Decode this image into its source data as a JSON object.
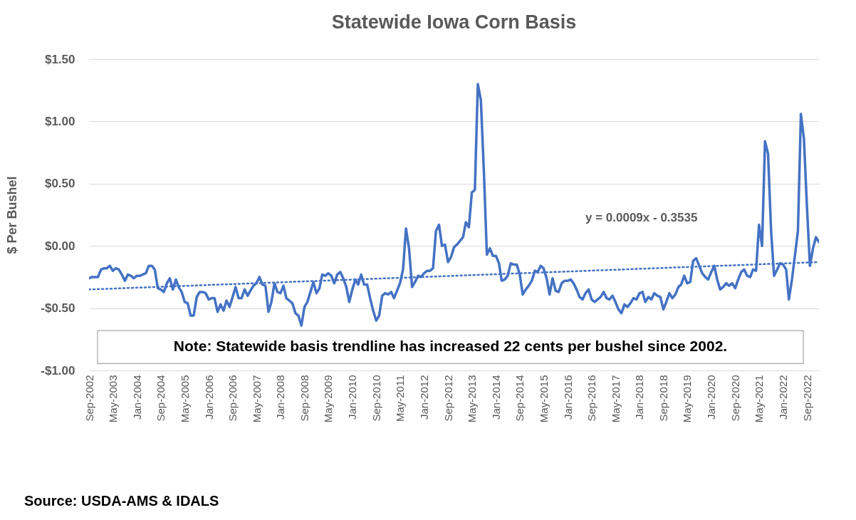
{
  "chart_data": {
    "type": "line",
    "title": "Statewide Iowa Corn Basis",
    "ylabel": "$ Per Bushel",
    "series": [
      {
        "color": "#4472c4",
        "x": [
          "2002-09",
          "2002-10",
          "2002-11",
          "2002-12",
          "2003-01",
          "2003-02",
          "2003-03",
          "2003-04",
          "2003-05",
          "2003-06",
          "2003-07",
          "2003-08",
          "2003-09",
          "2003-10",
          "2003-11",
          "2003-12",
          "2004-01",
          "2004-02",
          "2004-03",
          "2004-04",
          "2004-05",
          "2004-06",
          "2004-07",
          "2004-08",
          "2004-09",
          "2004-10",
          "2004-11",
          "2004-12",
          "2005-01",
          "2005-02",
          "2005-03",
          "2005-04",
          "2005-05",
          "2005-06",
          "2005-07",
          "2005-08",
          "2005-09",
          "2005-10",
          "2005-11",
          "2005-12",
          "2006-01",
          "2006-02",
          "2006-03",
          "2006-04",
          "2006-05",
          "2006-06",
          "2006-07",
          "2006-08",
          "2006-09",
          "2006-10",
          "2006-11",
          "2006-12",
          "2007-01",
          "2007-02",
          "2007-03",
          "2007-04",
          "2007-05",
          "2007-06",
          "2007-07",
          "2007-08",
          "2007-09",
          "2007-10",
          "2007-11",
          "2007-12",
          "2008-01",
          "2008-02",
          "2008-03",
          "2008-04",
          "2008-05",
          "2008-06",
          "2008-07",
          "2008-08",
          "2008-09",
          "2008-10",
          "2008-11",
          "2008-12",
          "2009-01",
          "2009-02",
          "2009-03",
          "2009-04",
          "2009-05",
          "2009-06",
          "2009-07",
          "2009-08",
          "2009-09",
          "2009-10",
          "2009-11",
          "2009-12",
          "2010-01",
          "2010-02",
          "2010-03",
          "2010-04",
          "2010-05",
          "2010-06",
          "2010-07",
          "2010-08",
          "2010-09",
          "2010-10",
          "2010-11",
          "2010-12",
          "2011-01",
          "2011-02",
          "2011-03",
          "2011-04",
          "2011-05",
          "2011-06",
          "2011-07",
          "2011-08",
          "2011-09",
          "2011-10",
          "2011-11",
          "2011-12",
          "2012-01",
          "2012-02",
          "2012-03",
          "2012-04",
          "2012-05",
          "2012-06",
          "2012-07",
          "2012-08",
          "2012-09",
          "2012-10",
          "2012-11",
          "2012-12",
          "2013-01",
          "2013-02",
          "2013-03",
          "2013-04",
          "2013-05",
          "2013-06",
          "2013-07",
          "2013-08",
          "2013-09",
          "2013-10",
          "2013-11",
          "2013-12",
          "2014-01",
          "2014-02",
          "2014-03",
          "2014-04",
          "2014-05",
          "2014-06",
          "2014-07",
          "2014-08",
          "2014-09",
          "2014-10",
          "2014-11",
          "2014-12",
          "2015-01",
          "2015-02",
          "2015-03",
          "2015-04",
          "2015-05",
          "2015-06",
          "2015-07",
          "2015-08",
          "2015-09",
          "2015-10",
          "2015-11",
          "2015-12",
          "2016-01",
          "2016-02",
          "2016-03",
          "2016-04",
          "2016-05",
          "2016-06",
          "2016-07",
          "2016-08",
          "2016-09",
          "2016-10",
          "2016-11",
          "2016-12",
          "2017-01",
          "2017-02",
          "2017-03",
          "2017-04",
          "2017-05",
          "2017-06",
          "2017-07",
          "2017-08",
          "2017-09",
          "2017-10",
          "2017-11",
          "2017-12",
          "2018-01",
          "2018-02",
          "2018-03",
          "2018-04",
          "2018-05",
          "2018-06",
          "2018-07",
          "2018-08",
          "2018-09",
          "2018-10",
          "2018-11",
          "2018-12",
          "2019-01",
          "2019-02",
          "2019-03",
          "2019-04",
          "2019-05",
          "2019-06",
          "2019-07",
          "2019-08",
          "2019-09",
          "2019-10",
          "2019-11",
          "2019-12",
          "2020-01",
          "2020-02",
          "2020-03",
          "2020-04",
          "2020-05",
          "2020-06",
          "2020-07",
          "2020-08",
          "2020-09",
          "2020-10",
          "2020-11",
          "2020-12",
          "2021-01",
          "2021-02",
          "2021-03",
          "2021-04",
          "2021-05",
          "2021-06",
          "2021-07",
          "2021-08",
          "2021-09",
          "2021-10",
          "2021-11",
          "2021-12",
          "2022-01",
          "2022-02",
          "2022-03",
          "2022-04",
          "2022-05",
          "2022-06",
          "2022-07",
          "2022-08",
          "2022-09",
          "2022-10",
          "2022-11",
          "2022-12",
          "2023-01"
        ],
        "values": [
          -0.26,
          -0.25,
          -0.25,
          -0.25,
          -0.19,
          -0.18,
          -0.18,
          -0.16,
          -0.2,
          -0.18,
          -0.19,
          -0.23,
          -0.28,
          -0.23,
          -0.24,
          -0.26,
          -0.24,
          -0.24,
          -0.23,
          -0.22,
          -0.16,
          -0.16,
          -0.19,
          -0.34,
          -0.35,
          -0.37,
          -0.3,
          -0.26,
          -0.35,
          -0.27,
          -0.33,
          -0.37,
          -0.45,
          -0.46,
          -0.56,
          -0.56,
          -0.41,
          -0.37,
          -0.37,
          -0.38,
          -0.43,
          -0.42,
          -0.42,
          -0.53,
          -0.47,
          -0.52,
          -0.44,
          -0.49,
          -0.41,
          -0.33,
          -0.42,
          -0.42,
          -0.35,
          -0.4,
          -0.36,
          -0.32,
          -0.3,
          -0.25,
          -0.31,
          -0.32,
          -0.53,
          -0.45,
          -0.3,
          -0.37,
          -0.38,
          -0.32,
          -0.42,
          -0.44,
          -0.46,
          -0.54,
          -0.56,
          -0.64,
          -0.49,
          -0.45,
          -0.37,
          -0.29,
          -0.38,
          -0.34,
          -0.23,
          -0.24,
          -0.22,
          -0.24,
          -0.3,
          -0.23,
          -0.21,
          -0.26,
          -0.33,
          -0.45,
          -0.35,
          -0.27,
          -0.31,
          -0.23,
          -0.31,
          -0.31,
          -0.42,
          -0.52,
          -0.6,
          -0.56,
          -0.4,
          -0.38,
          -0.39,
          -0.37,
          -0.42,
          -0.36,
          -0.3,
          -0.19,
          0.14,
          -0.02,
          -0.33,
          -0.29,
          -0.24,
          -0.25,
          -0.22,
          -0.2,
          -0.2,
          -0.18,
          0.12,
          0.17,
          0.0,
          0.01,
          -0.13,
          -0.09,
          -0.01,
          0.01,
          0.04,
          0.07,
          0.19,
          0.15,
          0.43,
          0.45,
          1.3,
          1.17,
          0.59,
          -0.07,
          -0.02,
          -0.08,
          -0.08,
          -0.14,
          -0.28,
          -0.27,
          -0.24,
          -0.14,
          -0.15,
          -0.15,
          -0.23,
          -0.39,
          -0.35,
          -0.32,
          -0.28,
          -0.2,
          -0.21,
          -0.16,
          -0.18,
          -0.26,
          -0.39,
          -0.26,
          -0.36,
          -0.37,
          -0.3,
          -0.28,
          -0.28,
          -0.27,
          -0.3,
          -0.35,
          -0.41,
          -0.43,
          -0.38,
          -0.35,
          -0.43,
          -0.45,
          -0.43,
          -0.41,
          -0.37,
          -0.42,
          -0.43,
          -0.4,
          -0.45,
          -0.51,
          -0.54,
          -0.47,
          -0.49,
          -0.46,
          -0.42,
          -0.43,
          -0.38,
          -0.37,
          -0.45,
          -0.41,
          -0.43,
          -0.38,
          -0.4,
          -0.41,
          -0.51,
          -0.45,
          -0.38,
          -0.42,
          -0.39,
          -0.33,
          -0.31,
          -0.24,
          -0.3,
          -0.29,
          -0.12,
          -0.1,
          -0.16,
          -0.22,
          -0.25,
          -0.27,
          -0.21,
          -0.16,
          -0.27,
          -0.35,
          -0.33,
          -0.3,
          -0.32,
          -0.3,
          -0.34,
          -0.27,
          -0.21,
          -0.19,
          -0.24,
          -0.25,
          -0.19,
          -0.2,
          0.17,
          0.0,
          0.84,
          0.74,
          0.12,
          -0.24,
          -0.19,
          -0.14,
          -0.15,
          -0.19,
          -0.43,
          -0.27,
          -0.08,
          0.12,
          1.06,
          0.86,
          0.31,
          -0.16,
          -0.02,
          0.07,
          0.03
        ]
      },
      {
        "type": "line",
        "color": "#4472c4",
        "line_style": "dotted",
        "x": [
          "2002-09",
          "2023-01"
        ],
        "values": [
          -0.35,
          -0.13
        ]
      }
    ],
    "xlim": [
      "2002-09",
      "2023-01"
    ],
    "xticks": [
      {
        "value": "2002-09",
        "label": "Sep-2002"
      },
      {
        "value": "2003-05",
        "label": "May-2003"
      },
      {
        "value": "2004-01",
        "label": "Jan-2004"
      },
      {
        "value": "2004-09",
        "label": "Sep-2004"
      },
      {
        "value": "2005-05",
        "label": "May-2005"
      },
      {
        "value": "2006-01",
        "label": "Jan-2006"
      },
      {
        "value": "2006-09",
        "label": "Sep-2006"
      },
      {
        "value": "2007-05",
        "label": "May-2007"
      },
      {
        "value": "2008-01",
        "label": "Jan-2008"
      },
      {
        "value": "2008-09",
        "label": "Sep-2008"
      },
      {
        "value": "2009-05",
        "label": "May-2009"
      },
      {
        "value": "2010-01",
        "label": "Jan-2010"
      },
      {
        "value": "2010-09",
        "label": "Sep-2010"
      },
      {
        "value": "2011-05",
        "label": "May-2011"
      },
      {
        "value": "2012-01",
        "label": "Jan-2012"
      },
      {
        "value": "2012-09",
        "label": "Sep-2012"
      },
      {
        "value": "2013-05",
        "label": "May-2013"
      },
      {
        "value": "2014-01",
        "label": "Jan-2014"
      },
      {
        "value": "2014-09",
        "label": "Sep-2014"
      },
      {
        "value": "2015-05",
        "label": "May-2015"
      },
      {
        "value": "2016-01",
        "label": "Jan-2016"
      },
      {
        "value": "2016-09",
        "label": "Sep-2016"
      },
      {
        "value": "2017-05",
        "label": "May-2017"
      },
      {
        "value": "2018-01",
        "label": "Jan-2018"
      },
      {
        "value": "2018-09",
        "label": "Sep-2018"
      },
      {
        "value": "2019-05",
        "label": "May-2019"
      },
      {
        "value": "2020-01",
        "label": "Jan-2020"
      },
      {
        "value": "2020-09",
        "label": "Sep-2020"
      },
      {
        "value": "2021-05",
        "label": "May-2021"
      },
      {
        "value": "2022-01",
        "label": "Jan-2022"
      },
      {
        "value": "2022-09",
        "label": "Sep-2022"
      }
    ],
    "ylim": [
      -1,
      1.5
    ],
    "yticks": [
      {
        "value": -1,
        "label": "-$1.00"
      },
      {
        "value": -0.5,
        "label": "-$0.50"
      },
      {
        "value": 0,
        "label": "$0.00"
      },
      {
        "value": 0.5,
        "label": "$0.50"
      },
      {
        "value": 1,
        "label": "$1.00"
      },
      {
        "value": 1.5,
        "label": "$1.50"
      }
    ],
    "grid": "y",
    "line_style": "solid",
    "annotations": [
      "y = 0.0009x - 0.3535",
      "Note: Statewide basis trendline has increased 22 cents per bushel since 2002.",
      "Source: USDA-AMS & IDALS"
    ]
  }
}
